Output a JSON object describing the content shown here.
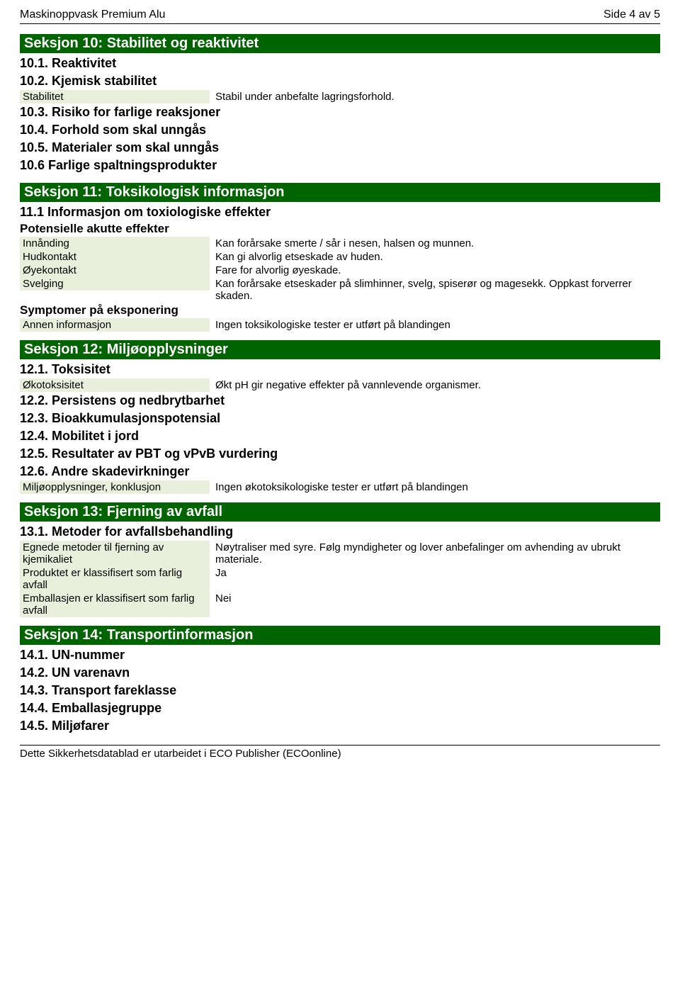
{
  "header": {
    "left": "Maskinoppvask Premium Alu",
    "right": "Side 4 av 5"
  },
  "section10": {
    "title": "Seksjon 10: Stabilitet og reaktivitet",
    "h1": "10.1. Reaktivitet",
    "h2": "10.2. Kjemisk stabilitet",
    "stab_label": "Stabilitet",
    "stab_value": "Stabil under anbefalte lagringsforhold.",
    "h3": "10.3. Risiko for farlige reaksjoner",
    "h4": "10.4. Forhold som skal unngås",
    "h5": "10.5. Materialer som skal unngås",
    "h6": "10.6 Farlige spaltningsprodukter"
  },
  "section11": {
    "title": "Seksjon 11: Toksikologisk informasjon",
    "h1": "11.1 Informasjon om toxiologiske effekter",
    "sub": "Potensielle akutte effekter",
    "rows": [
      {
        "label": "Innånding",
        "value": "Kan forårsake smerte / sår i nesen, halsen og munnen."
      },
      {
        "label": "Hudkontakt",
        "value": "Kan gi alvorlig etseskade av huden."
      },
      {
        "label": "Øyekontakt",
        "value": "Fare for alvorlig øyeskade."
      },
      {
        "label": "Svelging",
        "value": "Kan forårsake etseskader på slimhinner, svelg, spiserør og magesekk. Oppkast forverrer skaden."
      }
    ],
    "sub2": "Symptomer på eksponering",
    "info_label": "Annen informasjon",
    "info_value": "Ingen toksikologiske tester er utført på blandingen"
  },
  "section12": {
    "title": "Seksjon 12: Miljøopplysninger",
    "h1": "12.1. Toksisitet",
    "eco_label": "Økotoksisitet",
    "eco_value": "Økt pH gir negative effekter på vannlevende organismer.",
    "h2": "12.2. Persistens og nedbrytbarhet",
    "h3": "12.3. Bioakkumulasjonspotensial",
    "h4": "12.4. Mobilitet i jord",
    "h5": "12.5. Resultater av PBT og vPvB vurdering",
    "h6": "12.6. Andre skadevirkninger",
    "conc_label": "Miljøopplysninger, konklusjon",
    "conc_value": "Ingen økotoksikologiske tester er utført på blandingen"
  },
  "section13": {
    "title": "Seksjon 13: Fjerning av avfall",
    "h1": "13.1. Metoder for avfallsbehandling",
    "rows": [
      {
        "label": "Egnede metoder til fjerning av kjemikaliet",
        "value": "Nøytraliser med syre. Følg myndigheter og lover anbefalinger om avhending av ubrukt materiale."
      },
      {
        "label": "Produktet er klassifisert som farlig avfall",
        "value": "Ja"
      },
      {
        "label": "Emballasjen er klassifisert som farlig avfall",
        "value": "Nei"
      }
    ]
  },
  "section14": {
    "title": "Seksjon 14: Transportinformasjon",
    "h1": "14.1. UN-nummer",
    "h2": "14.2. UN varenavn",
    "h3": "14.3. Transport fareklasse",
    "h4": "14.4. Emballasjegruppe",
    "h5": "14.5. Miljøfarer"
  },
  "footer": "Dette Sikkerhetsdatablad er utarbeidet i ECO Publisher (ECOonline)"
}
